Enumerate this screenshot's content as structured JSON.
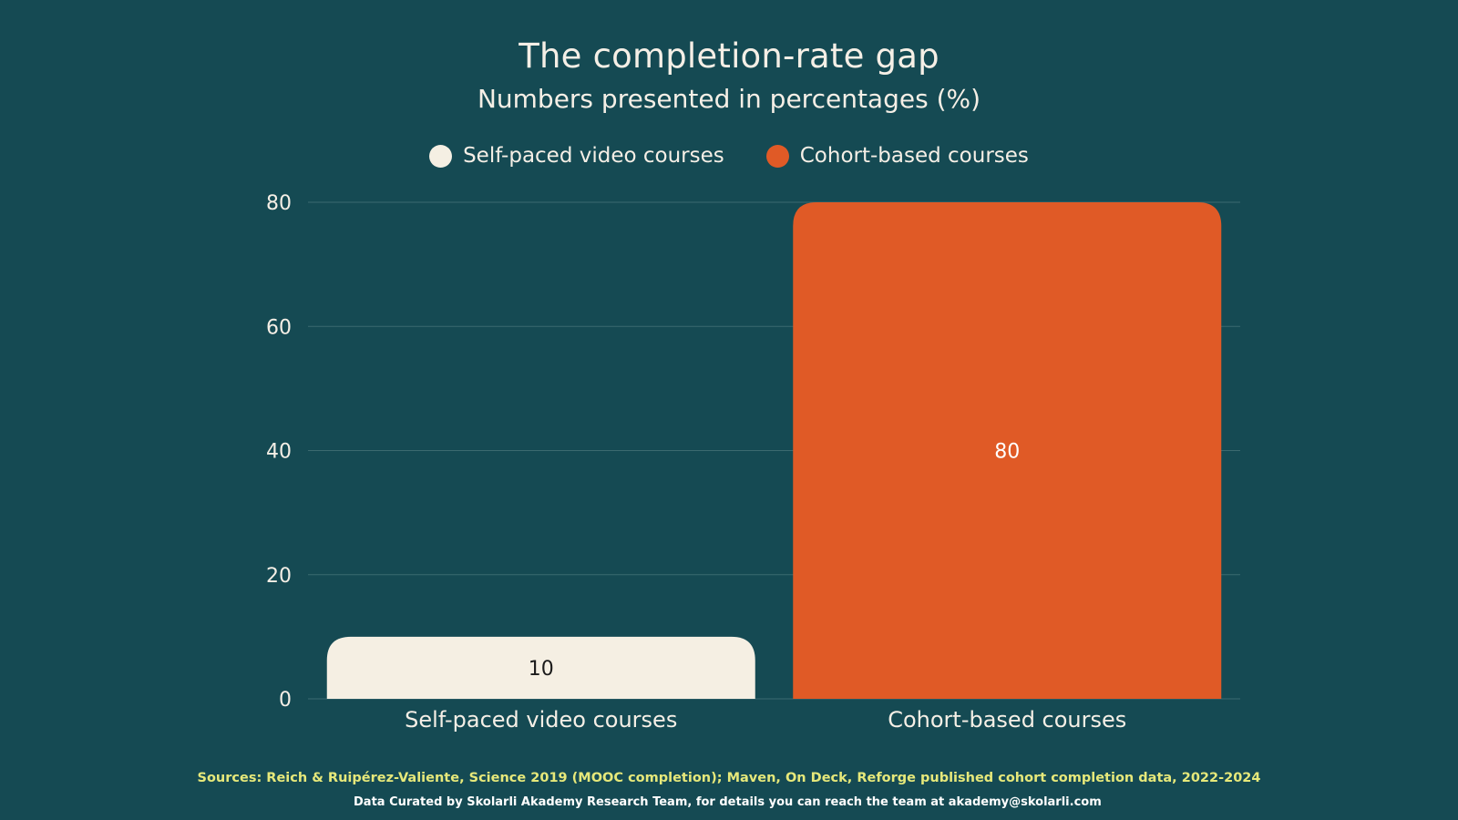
{
  "chart_data": {
    "type": "bar",
    "title": "The completion-rate gap",
    "subtitle": "Numbers presented in percentages (%)",
    "categories": [
      "Self-paced video courses",
      "Cohort-based courses"
    ],
    "values": [
      10,
      80
    ],
    "data_labels": [
      "10",
      "80"
    ],
    "colors": [
      "#f5efe3",
      "#e05a26"
    ],
    "legend": {
      "position": "top-center",
      "entries": [
        {
          "label": "Self-paced video courses",
          "color": "#f5efe3"
        },
        {
          "label": "Cohort-based courses",
          "color": "#e05a26"
        }
      ]
    },
    "ylim": [
      0,
      80
    ],
    "yticks": [
      0,
      20,
      40,
      60,
      80
    ],
    "grid": true,
    "xlabel": "",
    "ylabel": ""
  },
  "footer": {
    "sources": "Sources: Reich & Ruipérez-Valiente, Science 2019 (MOOC completion); Maven, On Deck, Reforge published cohort completion data, 2022-2024",
    "credit": "Data Curated by Skolarli Akademy Research Team, for details you can reach the team at akademy@skolarli.com"
  },
  "colors": {
    "background": "#154a53",
    "text": "#f5efe6",
    "gridline": "#3b6a70",
    "sources_text": "#e6e87a"
  }
}
